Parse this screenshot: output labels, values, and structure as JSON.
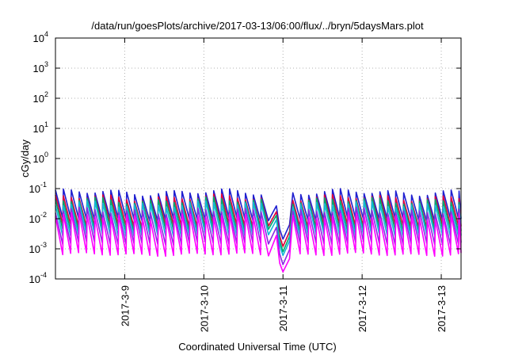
{
  "chart_data": {
    "type": "line",
    "title": "/data/run/goesPlots/archive/2017-03-13/06:00/flux/../bryn/5daysMars.plot",
    "xlabel": "Coordinated Universal Time (UTC)",
    "ylabel": "cGy/day",
    "yscale": "log",
    "ylim": [
      0.0001,
      10000
    ],
    "y_ticks": [
      {
        "base": "10",
        "exp": "-4",
        "value": 0.0001
      },
      {
        "base": "10",
        "exp": "-3",
        "value": 0.001
      },
      {
        "base": "10",
        "exp": "-2",
        "value": 0.01
      },
      {
        "base": "10",
        "exp": "-1",
        "value": 0.1
      },
      {
        "base": "10",
        "exp": "0",
        "value": 1
      },
      {
        "base": "10",
        "exp": "1",
        "value": 10
      },
      {
        "base": "10",
        "exp": "2",
        "value": 100
      },
      {
        "base": "10",
        "exp": "3",
        "value": 1000
      },
      {
        "base": "10",
        "exp": "4",
        "value": 10000
      }
    ],
    "xlim": [
      "2017-03-08T03:00",
      "2017-03-13T06:00"
    ],
    "x_ticks": [
      {
        "label": "2017-3-9",
        "value": "2017-03-09T00:00"
      },
      {
        "label": "2017-3-10",
        "value": "2017-03-10T00:00"
      },
      {
        "label": "2017-3-11",
        "value": "2017-03-11T00:00"
      },
      {
        "label": "2017-3-12",
        "value": "2017-03-12T00:00"
      },
      {
        "label": "2017-3-13",
        "value": "2017-03-13T00:00"
      }
    ],
    "grid": true,
    "legend": "none",
    "cycle_hours": 2.4,
    "dip": {
      "start": "2017-03-10T22:00",
      "minimum": "2017-03-11T00:00",
      "end": "2017-03-11T02:00"
    },
    "series": [
      {
        "color": "#1f1fd0",
        "peak": 0.075,
        "trough": 0.0095,
        "dip_min": 0.0021
      },
      {
        "color": "#e0003a",
        "peak": 0.05,
        "trough": 0.0058,
        "dip_min": 0.0012
      },
      {
        "color": "#00a86b",
        "peak": 0.04,
        "trough": 0.0042,
        "dip_min": 0.0008
      },
      {
        "color": "#12b8d8",
        "peak": 0.03,
        "trough": 0.0028,
        "dip_min": 0.0006
      },
      {
        "color": "#8a2be2",
        "peak": 0.018,
        "trough": 0.0015,
        "dip_min": 0.0003
      },
      {
        "color": "#ff00ff",
        "peak": 0.012,
        "trough": 0.00065,
        "dip_min": 0.00017
      }
    ]
  }
}
